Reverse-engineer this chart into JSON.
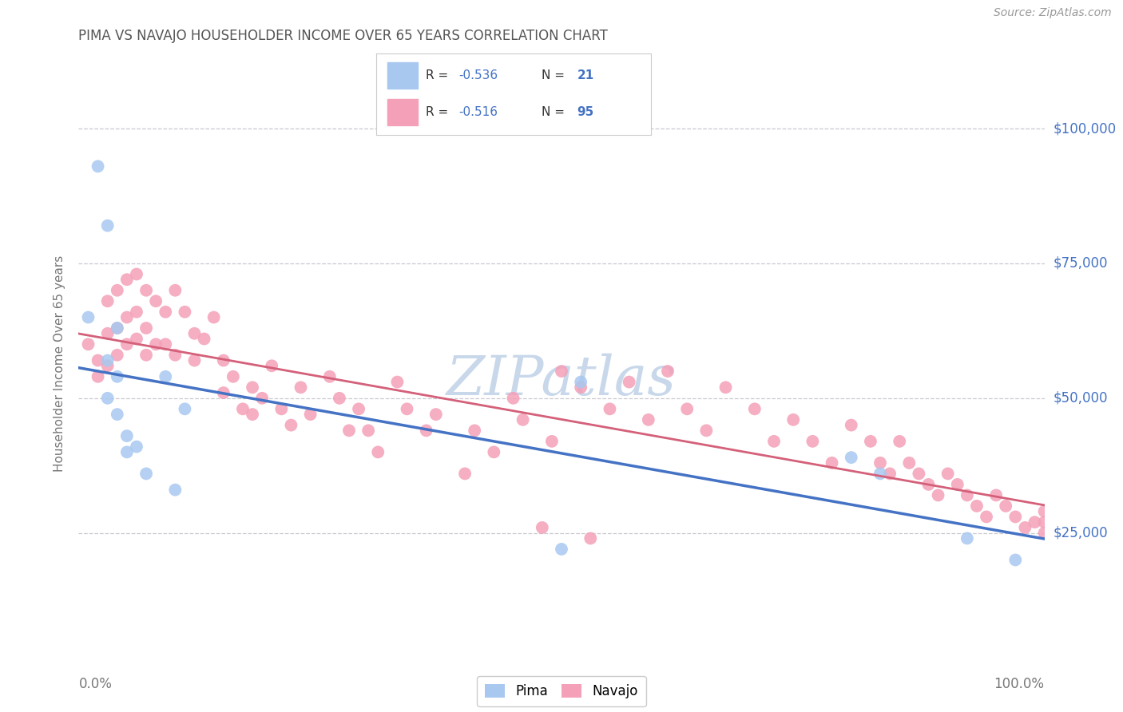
{
  "title": "PIMA VS NAVAJO HOUSEHOLDER INCOME OVER 65 YEARS CORRELATION CHART",
  "source": "Source: ZipAtlas.com",
  "ylabel": "Householder Income Over 65 years",
  "y_tick_labels": [
    "$25,000",
    "$50,000",
    "$75,000",
    "$100,000"
  ],
  "y_tick_values": [
    25000,
    50000,
    75000,
    100000
  ],
  "y_min": 5000,
  "y_max": 108000,
  "x_min": 0.0,
  "x_max": 1.0,
  "pima_R": -0.536,
  "pima_N": 21,
  "navajo_R": -0.516,
  "navajo_N": 95,
  "pima_color": "#a8c8f0",
  "navajo_color": "#f4a0b8",
  "pima_line_color": "#4472c4",
  "navajo_line_color": "#d4607a",
  "legend_text_color": "#4472c4",
  "title_color": "#555555",
  "axis_label_color": "#777777",
  "background_color": "#ffffff",
  "grid_color": "#c8c8d0",
  "watermark_color": "#c8d8ea",
  "pima_x": [
    0.01,
    0.02,
    0.03,
    0.03,
    0.03,
    0.04,
    0.04,
    0.04,
    0.05,
    0.05,
    0.06,
    0.07,
    0.09,
    0.1,
    0.11,
    0.5,
    0.52,
    0.8,
    0.83,
    0.92,
    0.97
  ],
  "pima_y": [
    65000,
    93000,
    82000,
    57000,
    50000,
    63000,
    54000,
    47000,
    43000,
    40000,
    41000,
    36000,
    54000,
    33000,
    48000,
    22000,
    53000,
    39000,
    36000,
    24000,
    20000
  ],
  "navajo_x": [
    0.01,
    0.02,
    0.02,
    0.03,
    0.03,
    0.03,
    0.04,
    0.04,
    0.04,
    0.05,
    0.05,
    0.05,
    0.06,
    0.06,
    0.06,
    0.07,
    0.07,
    0.07,
    0.08,
    0.08,
    0.09,
    0.09,
    0.1,
    0.1,
    0.11,
    0.12,
    0.12,
    0.13,
    0.14,
    0.15,
    0.15,
    0.16,
    0.17,
    0.18,
    0.18,
    0.19,
    0.2,
    0.21,
    0.22,
    0.23,
    0.24,
    0.26,
    0.27,
    0.28,
    0.29,
    0.3,
    0.31,
    0.33,
    0.34,
    0.36,
    0.37,
    0.4,
    0.41,
    0.43,
    0.45,
    0.46,
    0.49,
    0.5,
    0.52,
    0.55,
    0.57,
    0.59,
    0.61,
    0.63,
    0.65,
    0.67,
    0.7,
    0.72,
    0.74,
    0.76,
    0.78,
    0.8,
    0.82,
    0.83,
    0.84,
    0.85,
    0.86,
    0.87,
    0.88,
    0.89,
    0.9,
    0.91,
    0.92,
    0.93,
    0.94,
    0.95,
    0.96,
    0.97,
    0.98,
    0.99,
    1.0,
    1.0,
    1.0,
    0.48,
    0.53
  ],
  "navajo_y": [
    60000,
    57000,
    54000,
    68000,
    62000,
    56000,
    70000,
    63000,
    58000,
    72000,
    65000,
    60000,
    73000,
    66000,
    61000,
    70000,
    63000,
    58000,
    68000,
    60000,
    66000,
    60000,
    70000,
    58000,
    66000,
    62000,
    57000,
    61000,
    65000,
    57000,
    51000,
    54000,
    48000,
    52000,
    47000,
    50000,
    56000,
    48000,
    45000,
    52000,
    47000,
    54000,
    50000,
    44000,
    48000,
    44000,
    40000,
    53000,
    48000,
    44000,
    47000,
    36000,
    44000,
    40000,
    50000,
    46000,
    42000,
    55000,
    52000,
    48000,
    53000,
    46000,
    55000,
    48000,
    44000,
    52000,
    48000,
    42000,
    46000,
    42000,
    38000,
    45000,
    42000,
    38000,
    36000,
    42000,
    38000,
    36000,
    34000,
    32000,
    36000,
    34000,
    32000,
    30000,
    28000,
    32000,
    30000,
    28000,
    26000,
    27000,
    29000,
    27000,
    25000,
    26000,
    24000
  ]
}
